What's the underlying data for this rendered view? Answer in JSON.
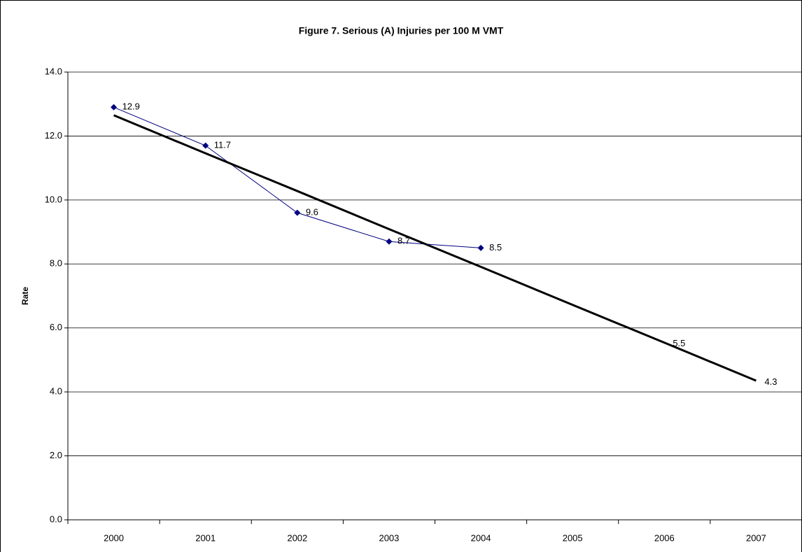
{
  "chart_data": {
    "type": "line",
    "title": "Figure 7. Serious (A) Injuries per 100 M VMT",
    "y_label": "Rate",
    "categories": [
      "2000",
      "2001",
      "2002",
      "2003",
      "2004",
      "2005",
      "2006",
      "2007"
    ],
    "series": [
      {
        "color": "#000080",
        "values": [
          12.9,
          11.7,
          9.6,
          8.7,
          8.5,
          null,
          null,
          null
        ],
        "marker": "diamond",
        "line_width": 1,
        "show_labels": true
      },
      {
        "color": "#000000",
        "values": [
          null,
          null,
          null,
          null,
          null,
          null,
          5.5,
          4.3
        ],
        "marker": "none",
        "line_width": 0,
        "show_labels": true
      },
      {
        "color": "#000000",
        "values": [
          12.65,
          11.46,
          10.28,
          9.09,
          7.91,
          6.72,
          5.54,
          4.35
        ],
        "marker": "none",
        "line_width": 3,
        "show_labels": false
      }
    ],
    "ylim": [
      0,
      14
    ],
    "yticks": [
      {
        "value": 0,
        "label": "0.0"
      },
      {
        "value": 2,
        "label": "2.0"
      },
      {
        "value": 4,
        "label": "4.0"
      },
      {
        "value": 6,
        "label": "6.0"
      },
      {
        "value": 8,
        "label": "8.0"
      },
      {
        "value": 10,
        "label": "10.0"
      },
      {
        "value": 12,
        "label": "12.0"
      },
      {
        "value": 14,
        "label": "14.0"
      }
    ],
    "grid": true
  }
}
